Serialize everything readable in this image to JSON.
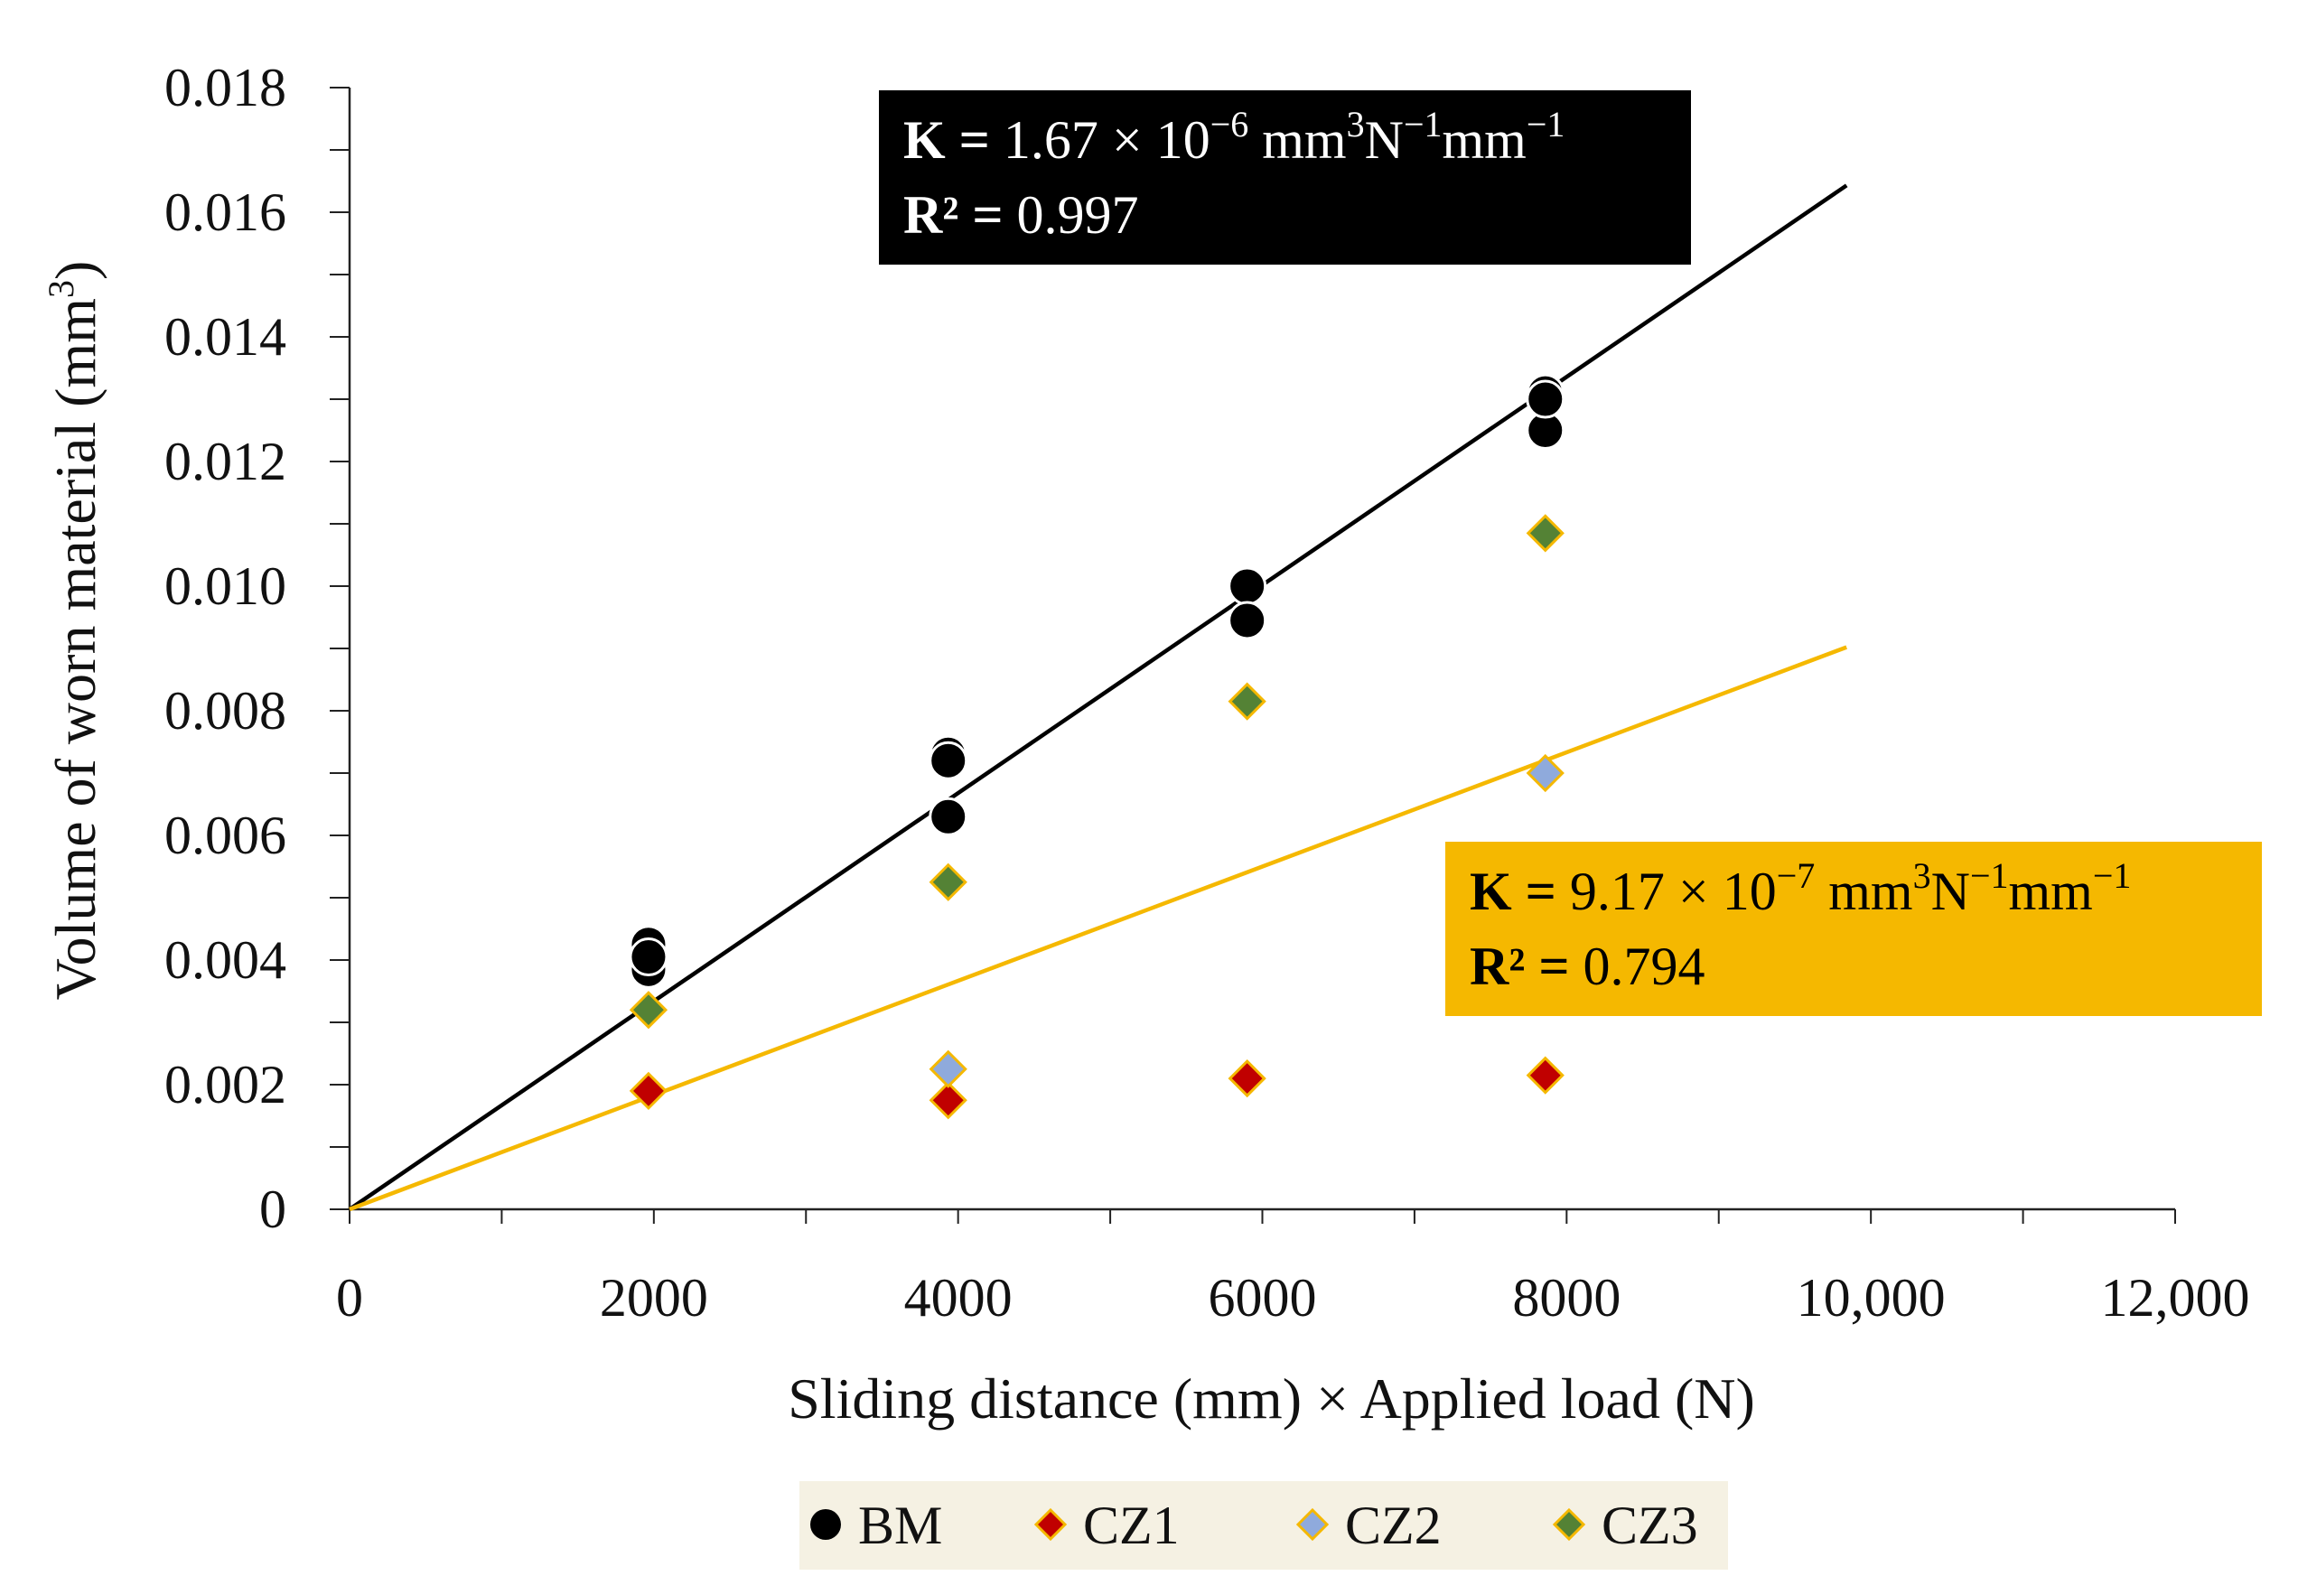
{
  "chart_data": {
    "type": "scatter",
    "xlabel": "Sliding distance (mm) × Applied load (N)",
    "ylabel_main": "Volume of worn material (mm",
    "ylabel_sup": "3",
    "ylabel_end": ")",
    "xlim": [
      0,
      12000
    ],
    "ylim": [
      0,
      0.018
    ],
    "x_ticks": [
      0,
      2000,
      4000,
      6000,
      8000,
      10000,
      12000
    ],
    "x_tick_labels": [
      "0",
      "2000",
      "4000",
      "6000",
      "8000",
      "10,000",
      "12,000"
    ],
    "x_minor_step": 1000,
    "y_ticks": [
      0,
      0.002,
      0.004,
      0.006,
      0.008,
      0.01,
      0.012,
      0.014,
      0.016,
      0.018
    ],
    "y_tick_labels": [
      "0",
      "0.002",
      "0.004",
      "0.006",
      "0.008",
      "0.010",
      "0.012",
      "0.014",
      "0.016",
      "0.018"
    ],
    "y_minor_step": 0.001,
    "series": [
      {
        "name": "BM",
        "marker": "circle",
        "color": "#000000",
        "edge": "#ffffff",
        "points": [
          [
            1965,
            0.00425
          ],
          [
            1965,
            0.00385
          ],
          [
            1965,
            0.00405
          ],
          [
            3935,
            0.0073
          ],
          [
            3935,
            0.0072
          ],
          [
            3935,
            0.0063
          ],
          [
            5900,
            0.01
          ],
          [
            5900,
            0.00945
          ],
          [
            7860,
            0.0131
          ],
          [
            7860,
            0.0125
          ],
          [
            7860,
            0.013
          ]
        ]
      },
      {
        "name": "CZ1",
        "marker": "diamond",
        "color": "#c00000",
        "edge": "#f5b800",
        "points": [
          [
            1965,
            0.0019
          ],
          [
            3935,
            0.00175
          ],
          [
            5900,
            0.0021
          ],
          [
            7860,
            0.00215
          ]
        ]
      },
      {
        "name": "CZ2",
        "marker": "diamond",
        "color": "#8faadc",
        "edge": "#f5b800",
        "points": [
          [
            3935,
            0.00225
          ],
          [
            7860,
            0.007
          ]
        ]
      },
      {
        "name": "CZ3",
        "marker": "diamond",
        "color": "#548235",
        "edge": "#f5b800",
        "points": [
          [
            1965,
            0.0032
          ],
          [
            3935,
            0.00525
          ],
          [
            5900,
            0.00815
          ],
          [
            7860,
            0.01085
          ]
        ]
      }
    ],
    "trendlines": [
      {
        "name": "BM fit",
        "color": "#000000",
        "x": [
          0,
          9840
        ],
        "y": [
          0,
          0.01643
        ]
      },
      {
        "name": "CZ fit",
        "color": "#f5b800",
        "x": [
          0,
          9840
        ],
        "y": [
          0,
          0.00902
        ]
      }
    ],
    "annotations": [
      {
        "name": "bm-fit-annotation",
        "bg": "#000000",
        "fg": "#ffffff",
        "line1_bold": "K = ",
        "line1_coef": "1.67 × 10",
        "line1_exp": "−6",
        "line1_unit_a": " mm",
        "line1_unit_a_sup": "3",
        "line1_unit_b": "N",
        "line1_unit_b_sup": "−1",
        "line1_unit_c": "mm",
        "line1_unit_c_sup": "−1",
        "line2_bold": "R² = ",
        "line2_value": "0.997"
      },
      {
        "name": "cz-fit-annotation",
        "bg": "#f5b800",
        "fg": "#000000",
        "line1_bold": "K = ",
        "line1_coef": "9.17 × 10",
        "line1_exp": "−7",
        "line1_unit_a": " mm",
        "line1_unit_a_sup": "3",
        "line1_unit_b": "N",
        "line1_unit_b_sup": "−1",
        "line1_unit_c": "mm",
        "line1_unit_c_sup": "−1",
        "line2_bold": "R² = ",
        "line2_value": "0.794"
      }
    ],
    "legend": {
      "position": "bottom",
      "bg": "#f5f1e3",
      "items": [
        "BM",
        "CZ1",
        "CZ2",
        "CZ3"
      ]
    }
  }
}
